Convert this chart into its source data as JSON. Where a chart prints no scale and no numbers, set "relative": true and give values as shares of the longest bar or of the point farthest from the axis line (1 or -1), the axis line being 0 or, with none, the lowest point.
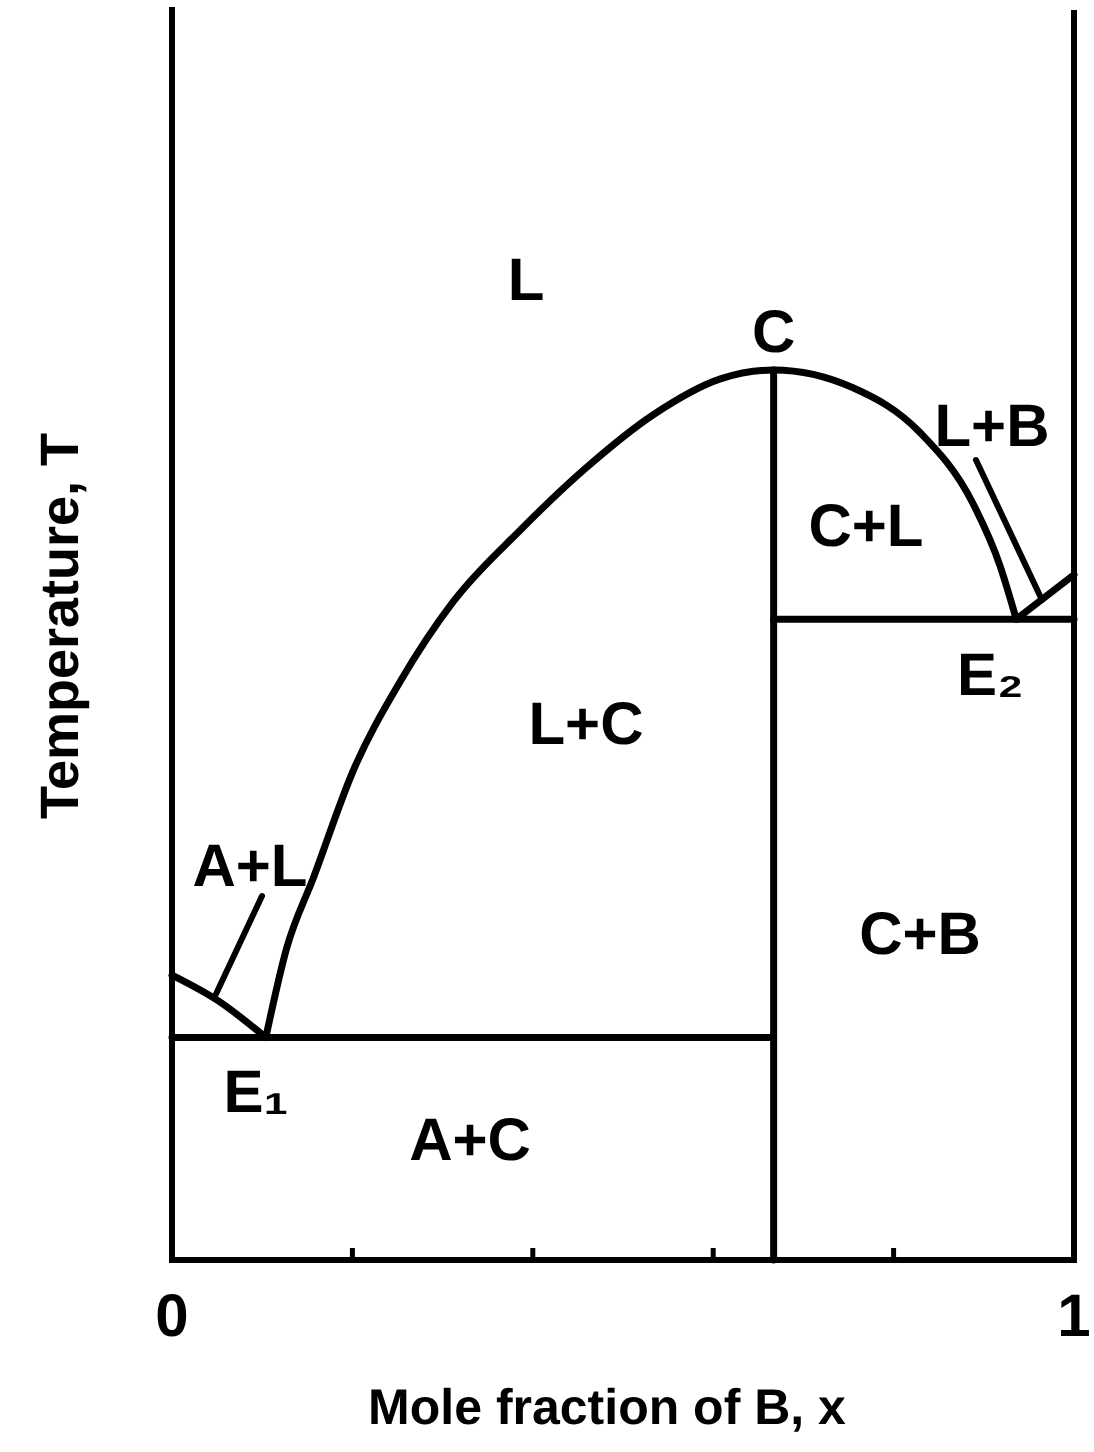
{
  "chart_data": {
    "type": "line",
    "xlabel": "Mole fraction of B, x",
    "ylabel": "Temperature, T",
    "relative": true,
    "xlim": [
      0,
      1
    ],
    "xticks": [
      0,
      {
        "value": 0.2,
        "label": null
      },
      {
        "value": 0.4,
        "label": null
      },
      {
        "value": 0.6,
        "label": null
      },
      {
        "value": 0.8,
        "label": null
      },
      1
    ],
    "tick_labels": "x",
    "line_style": "solid",
    "series": [
      {
        "color": "#000000",
        "x": [
          0,
          0.053,
          0.104
        ],
        "values": [
          0.32,
          0.29,
          0.25
        ]
      },
      {
        "color": "#000000",
        "x": [
          0.104,
          0.127,
          0.157,
          0.201,
          0.253,
          0.312,
          0.386,
          0.459,
          0.534,
          0.608,
          0.667,
          0.755,
          0.829,
          0.888,
          0.918,
          0.936
        ],
        "values": [
          0.25,
          0.35,
          0.43,
          0.55,
          0.65,
          0.74,
          0.82,
          0.89,
          0.95,
          0.99,
          1,
          0.98,
          0.93,
          0.85,
          0.78,
          0.72
        ]
      },
      {
        "color": "#000000",
        "x": [
          0.936,
          1
        ],
        "values": [
          0.72,
          0.77
        ]
      },
      {
        "color": "#000000",
        "x": [
          0,
          0.667
        ],
        "values": [
          0.25,
          0.25
        ]
      },
      {
        "color": "#000000",
        "x": [
          0.667,
          1
        ],
        "values": [
          0.72,
          0.72
        ]
      },
      {
        "color": "#000000",
        "x": [
          0.667,
          0.667
        ],
        "values": [
          0,
          1
        ]
      }
    ],
    "ref_lines": [
      {
        "axis": "x",
        "value": 1,
        "color": "#000000"
      }
    ],
    "annotations": [
      "L",
      {
        "text": "C",
        "x": 0.667,
        "y": 1
      },
      "L+B",
      "C+L",
      {
        "text": "E₂",
        "x": 0.936,
        "y": 0.72
      },
      "L+C",
      "A+L",
      "C+B",
      {
        "text": "E₁",
        "x": 0.104,
        "y": 0.25
      },
      "A+C"
    ]
  }
}
